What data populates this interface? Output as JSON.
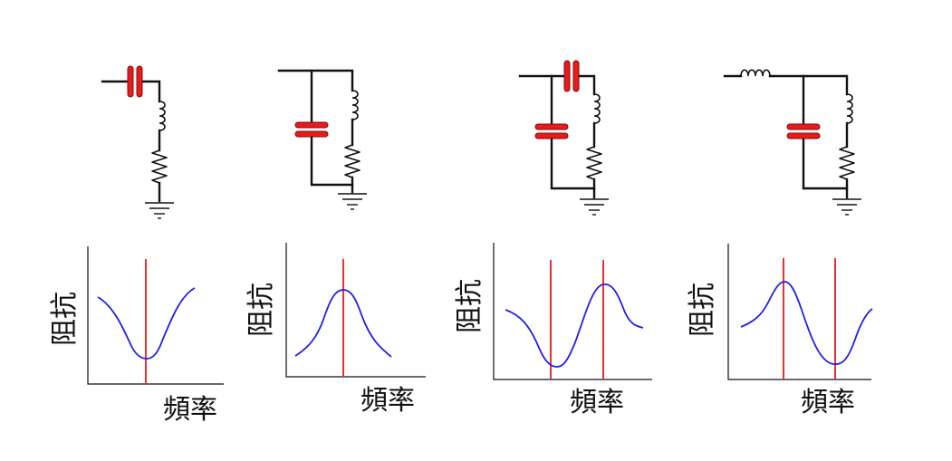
{
  "panels": [
    {
      "circuit": "series LC",
      "ylabel": "阻抗",
      "xlabel": "頻率",
      "curve_shape": "dip",
      "resonance_lines": 1
    },
    {
      "circuit": "parallel LC",
      "ylabel": "阻抗",
      "xlabel": "頻率",
      "curve_shape": "peak",
      "resonance_lines": 1
    },
    {
      "circuit": "series C + parallel LC",
      "ylabel": "阻抗",
      "xlabel": "頻率",
      "curve_shape": "dip then peak",
      "resonance_lines": 2
    },
    {
      "circuit": "series L + parallel LC",
      "ylabel": "阻抗",
      "xlabel": "頻率",
      "curve_shape": "peak then dip",
      "resonance_lines": 2
    }
  ],
  "colors": {
    "capacitor": "#e61b1b",
    "resonance_line": "#e61b1b",
    "impedance_curve": "#2020e8",
    "wire": "#111111"
  }
}
